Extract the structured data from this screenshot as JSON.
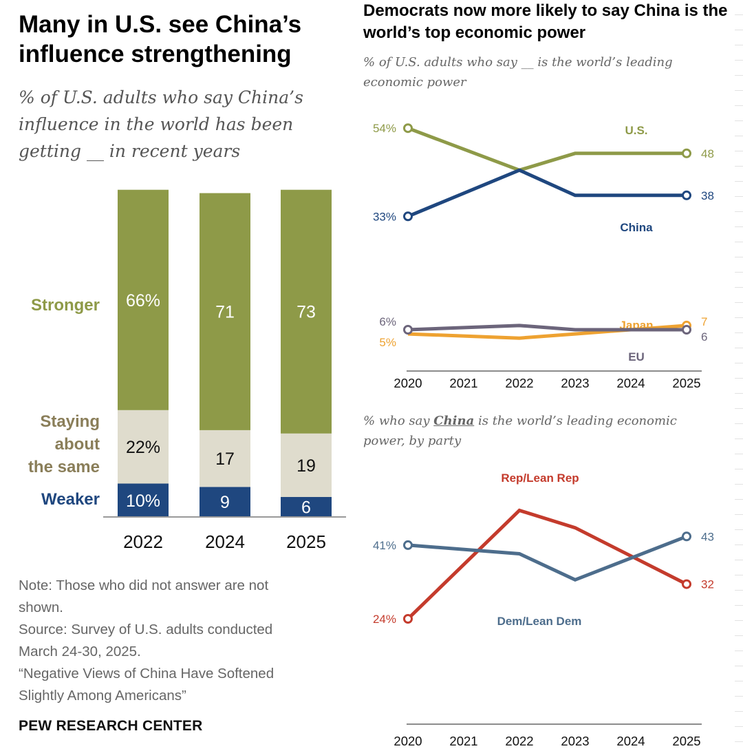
{
  "left": {
    "title": "Many in U.S. see China’s influence strengthening",
    "subtitle": "% of U.S. adults who say China’s influence in the world has been getting __ in recent years",
    "categories": [
      "Stronger",
      "Staying about the same",
      "Weaker"
    ],
    "category_lines": [
      "Staying",
      "about",
      "the same"
    ],
    "note_lines": [
      "Note: Those who did not answer are not",
      "shown.",
      "Source: Survey of U.S. adults conducted",
      "March 24-30, 2025.",
      "“Negative Views of China Have Softened",
      "Slightly Among Americans”"
    ],
    "source_org": "PEW RESEARCH CENTER"
  },
  "right": {
    "title": "Democrats now more likely to say China is the world’s top economic power",
    "subtitle1": "% of U.S. adults who say __ is the world’s leading economic power",
    "subtitle2_prefix": "% who say ",
    "subtitle2_emph": "China",
    "subtitle2_suffix": " is the world’s leading economic power, by party"
  },
  "colors": {
    "stronger": "#8e9a48",
    "same": "#dfdccd",
    "weaker": "#1f477f",
    "us": "#8e9a48",
    "china": "#1f477f",
    "japan": "#eea231",
    "eu": "#6c657b",
    "rep": "#c43b2c",
    "dem": "#4d6d8c",
    "same_label": "#8a7e59"
  },
  "chart_data": [
    {
      "type": "bar",
      "stacked": true,
      "categories": [
        "2022",
        "2024",
        "2025"
      ],
      "series": [
        {
          "name": "Weaker",
          "values": [
            10,
            9,
            6
          ],
          "labels": [
            "10%",
            "9",
            "6"
          ]
        },
        {
          "name": "Staying about the same",
          "values": [
            22,
            17,
            19
          ],
          "labels": [
            "22%",
            "17",
            "19"
          ]
        },
        {
          "name": "Stronger",
          "values": [
            66,
            71,
            73
          ],
          "labels": [
            "66%",
            "71",
            "73"
          ]
        }
      ],
      "ylim": [
        0,
        100
      ]
    },
    {
      "type": "line",
      "x": [
        "2020",
        "2021",
        "2022",
        "2023",
        "2024",
        "2025"
      ],
      "ylim": [
        0,
        60
      ],
      "series": [
        {
          "name": "U.S.",
          "values": [
            54,
            null,
            44,
            48,
            48,
            48
          ],
          "start_label": "54%",
          "end_label": "48"
        },
        {
          "name": "China",
          "values": [
            33,
            null,
            44,
            38,
            38,
            38
          ],
          "start_label": "33%",
          "end_label": "38"
        },
        {
          "name": "Japan",
          "values": [
            5,
            null,
            4,
            5,
            6,
            7
          ],
          "start_label": "5%",
          "end_label": "7"
        },
        {
          "name": "EU",
          "values": [
            6,
            null,
            7,
            6,
            6,
            6
          ],
          "start_label": "6%",
          "end_label": "6"
        }
      ]
    },
    {
      "type": "line",
      "x": [
        "2020",
        "2021",
        "2022",
        "2023",
        "2024",
        "2025"
      ],
      "ylim": [
        0,
        60
      ],
      "series": [
        {
          "name": "Rep/Lean Rep",
          "values": [
            24,
            null,
            49,
            45,
            null,
            32
          ],
          "start_label": "24%",
          "end_label": "32"
        },
        {
          "name": "Dem/Lean Dem",
          "values": [
            41,
            null,
            39,
            33,
            null,
            43
          ],
          "start_label": "41%",
          "end_label": "43"
        }
      ]
    }
  ]
}
